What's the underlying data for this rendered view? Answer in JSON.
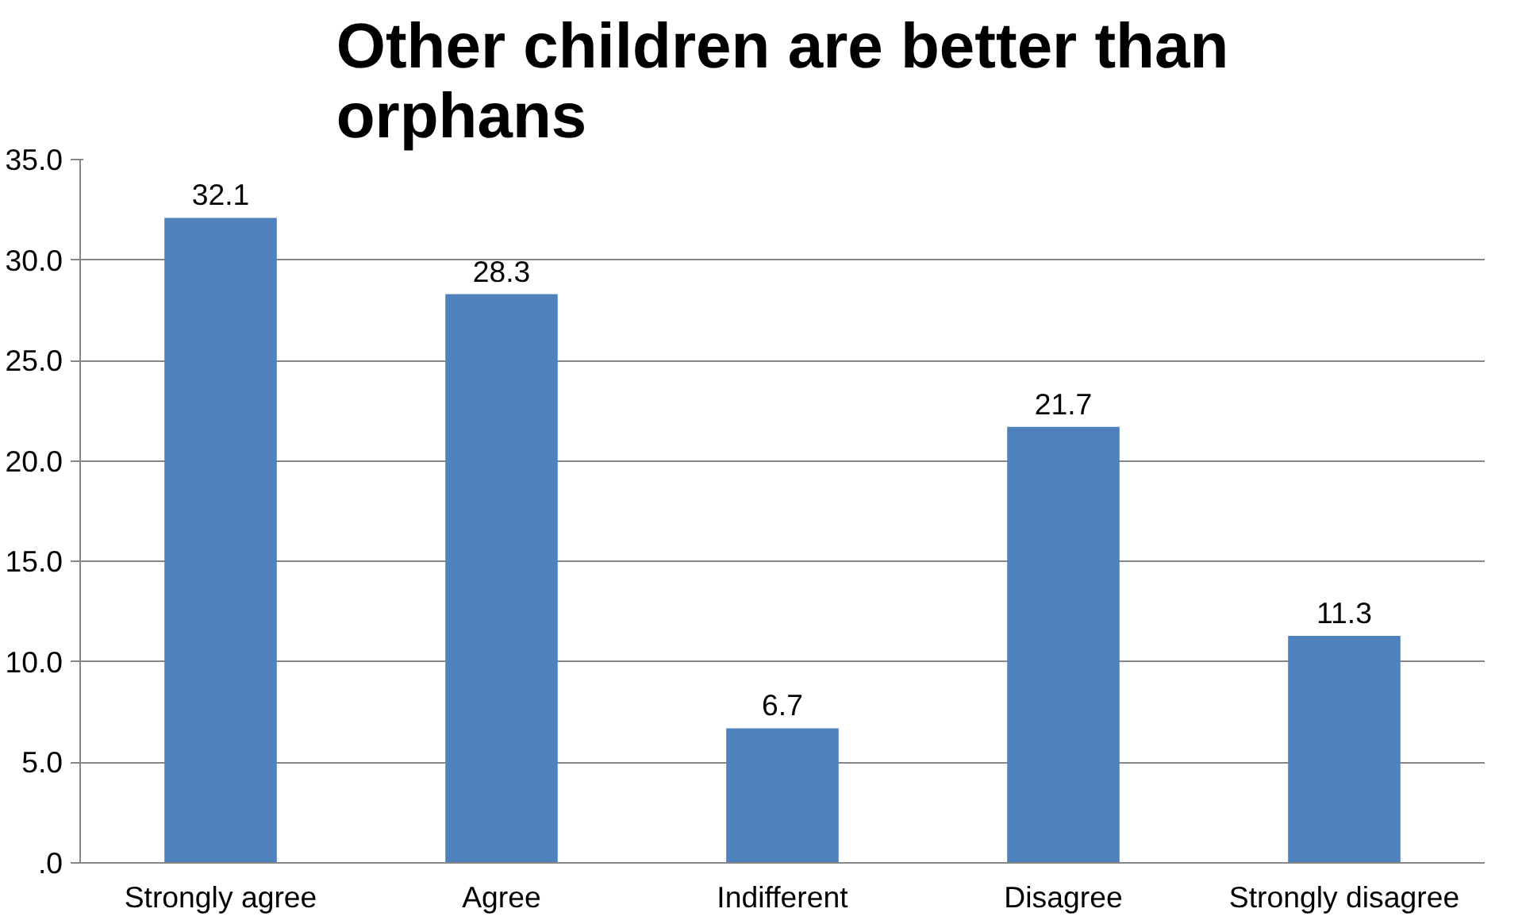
{
  "chart_data": {
    "type": "bar",
    "title": "Other children are better than orphans",
    "categories": [
      "Strongly agree",
      "Agree",
      "Indifferent",
      "Disagree",
      "Strongly disagree"
    ],
    "values": [
      32.1,
      28.3,
      6.7,
      21.7,
      11.3
    ],
    "color": "#4f81bd",
    "ylim": [
      0,
      35
    ],
    "yticks": [
      {
        "value": 0,
        "label": ".0"
      },
      {
        "value": 5,
        "label": "5.0"
      },
      {
        "value": 10,
        "label": "10.0"
      },
      {
        "value": 15,
        "label": "15.0"
      },
      {
        "value": 20,
        "label": "20.0"
      },
      {
        "value": 25,
        "label": "25.0"
      },
      {
        "value": 30,
        "label": "30.0"
      },
      {
        "value": 35,
        "label": "35.0"
      }
    ],
    "grid": "y",
    "data_labels": true
  }
}
